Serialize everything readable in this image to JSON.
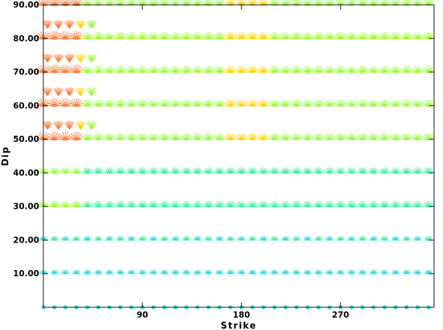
{
  "chart_data": {
    "type": "scatter",
    "title": "",
    "xlabel": "Strike",
    "ylabel": "Dip",
    "x_tick_labels": [
      "90",
      "180",
      "270"
    ],
    "x_ticks": [
      90,
      180,
      270
    ],
    "y_tick_labels": [
      "10.00",
      "20.00",
      "30.00",
      "40.00",
      "50.00",
      "60.00",
      "70.00",
      "80.00",
      "90.00"
    ],
    "y_ticks": [
      10,
      20,
      30,
      40,
      50,
      60,
      70,
      80,
      90
    ],
    "xlim": [
      0,
      355
    ],
    "ylim": [
      0,
      90
    ],
    "grid": false,
    "marker": "focal-mechanism fan glyphs, color graded by fit (orange = best, yellow, green, cyan = worst)",
    "strike_step": 10,
    "dip_rows": [
      0,
      10,
      20,
      30,
      40,
      50,
      60,
      70,
      80,
      90
    ],
    "colors": {
      "best": "#ff7f3f",
      "good": "#ffd700",
      "fair": "#9aff3a",
      "poor": "#40f0a0",
      "worst": "#30e0e0"
    },
    "strike_columns": 36
  }
}
